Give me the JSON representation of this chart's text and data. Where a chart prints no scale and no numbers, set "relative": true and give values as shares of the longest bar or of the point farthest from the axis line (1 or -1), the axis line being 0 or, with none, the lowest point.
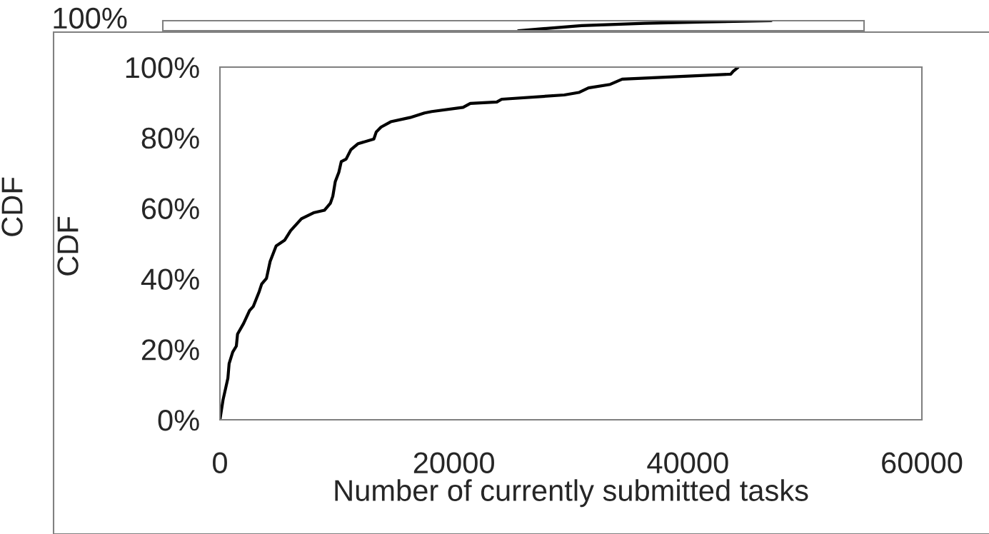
{
  "chart_data": [
    {
      "type": "line",
      "ylabel": "CDF",
      "relative": true,
      "annotations": [
        "100%"
      ],
      "categories": [
        null,
        null,
        null,
        null,
        null
      ],
      "series": [
        {
          "color": "#000000",
          "values": [
            0,
            0.51,
            0.74,
            0.88,
            1
          ]
        }
      ]
    },
    {
      "type": "line",
      "xlabel": "Number of currently submitted tasks",
      "ylabel": "CDF",
      "xlim": [
        0,
        60000
      ],
      "xticks": [
        0,
        20000,
        40000,
        60000
      ],
      "ylim": [
        0,
        100
      ],
      "yticks": [
        {
          "value": 0,
          "label": "0%"
        },
        {
          "value": 20,
          "label": "20%"
        },
        {
          "value": 40,
          "label": "40%"
        },
        {
          "value": 60,
          "label": "60%"
        },
        {
          "value": 80,
          "label": "80%"
        },
        {
          "value": 100,
          "label": "100%"
        }
      ],
      "series": [
        {
          "color": "#000000",
          "x": [
            0,
            268,
            680,
            784,
            1093,
            1402,
            1505,
            2021,
            2536,
            2845,
            3361,
            3567,
            3979,
            4289,
            4804,
            5526,
            6041,
            6969,
            8000,
            8928,
            9443,
            9649,
            9856,
            10165,
            10371,
            10784,
            11196,
            11814,
            13155,
            13361,
            13773,
            14598,
            16247,
            17485,
            18101,
            20784,
            21402,
            23667,
            24081,
            29437,
            30674,
            31503,
            33358,
            34385,
            43662,
            43872,
            44280
          ],
          "values": [
            0,
            5.7,
            11.8,
            15.9,
            19.2,
            20.9,
            24.3,
            27.3,
            31.0,
            32.1,
            36.4,
            38.5,
            40.1,
            44.9,
            49.3,
            50.9,
            53.6,
            57.0,
            58.7,
            59.4,
            61.4,
            63.4,
            67.5,
            70.2,
            73.2,
            73.9,
            76.6,
            78.3,
            79.6,
            81.6,
            83.0,
            84.5,
            85.7,
            87.0,
            87.4,
            88.6,
            89.7,
            90.1,
            90.9,
            92.1,
            92.8,
            94.1,
            95.1,
            96.6,
            98.0,
            98.8,
            99.9
          ]
        }
      ]
    }
  ]
}
